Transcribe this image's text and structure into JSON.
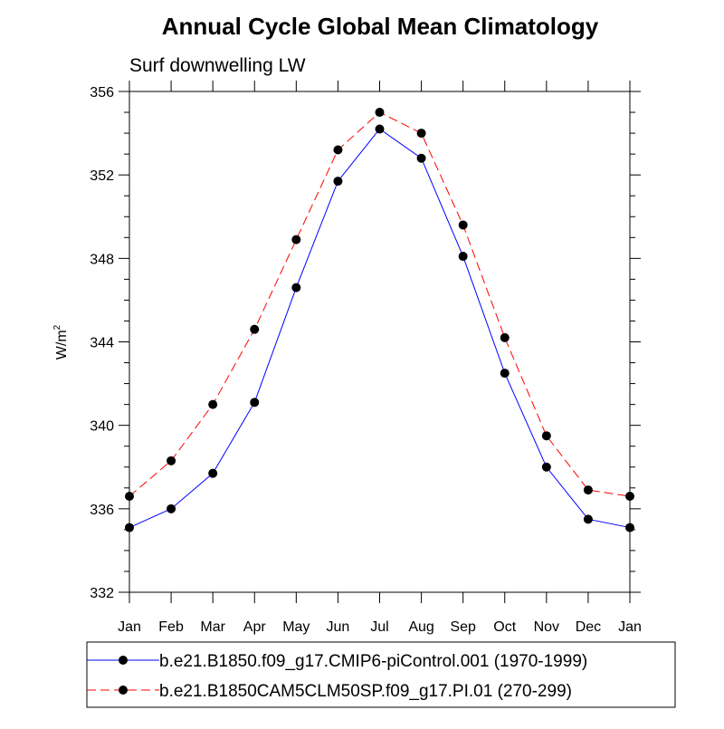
{
  "chart_data": {
    "type": "line",
    "title": "Annual Cycle Global Mean Climatology",
    "subtitle": "Surf downwelling LW",
    "ylabel": "W/m",
    "ylabel_superscript": "2",
    "xlabel": "",
    "ylim": [
      332,
      356
    ],
    "yticks": [
      332,
      336,
      340,
      344,
      348,
      352,
      356
    ],
    "ytick_labels": [
      "332",
      "336",
      "340",
      "344",
      "348",
      "352",
      "356"
    ],
    "y_minor_step": 1,
    "categories": [
      "Jan",
      "Feb",
      "Mar",
      "Apr",
      "May",
      "Jun",
      "Jul",
      "Aug",
      "Sep",
      "Oct",
      "Nov",
      "Dec",
      "Jan"
    ],
    "grid": false,
    "legend_position": "bottom",
    "series": [
      {
        "name": "b.e21.B1850.f09_g17.CMIP6-piControl.001 (1970-1999)",
        "color": "#0000ff",
        "dash": "solid",
        "marker": "filled-circle",
        "values": [
          335.1,
          336.0,
          337.7,
          341.1,
          346.6,
          351.7,
          354.2,
          352.8,
          348.1,
          342.5,
          338.0,
          335.5,
          335.1
        ]
      },
      {
        "name": "b.e21.B1850CAM5CLM50SP.f09_g17.PI.01 (270-299)",
        "color": "#ff0000",
        "dash": "dashed",
        "marker": "filled-circle",
        "values": [
          336.6,
          338.3,
          341.0,
          344.6,
          348.9,
          353.2,
          355.0,
          354.0,
          349.6,
          344.2,
          339.5,
          336.9,
          336.6
        ]
      }
    ]
  }
}
